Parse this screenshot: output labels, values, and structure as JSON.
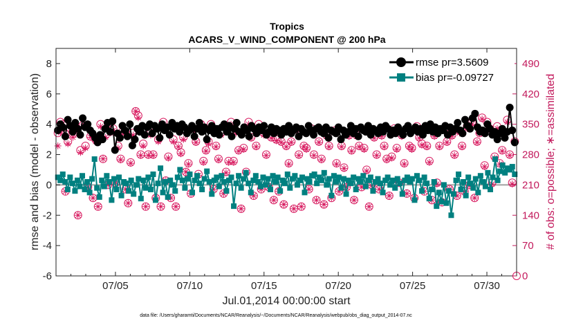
{
  "chart_data": {
    "type": "line",
    "title": "Tropics",
    "subtitle": "ACARS_V_WIND_COMPONENT @ 200 hPa",
    "xlabel": "Jul.01,2014 00:00:00 start",
    "ylabel": "rmse and bias (model - observation)",
    "y2label": "# of obs: o=possible; ∗=assimilated",
    "footnote": "data file: /Users/gharamti/Documents/NCAR/Reanalysis/~/Documents/NCAR/Reanalysis/webpub/obs_diag_output_2014-07.nc",
    "xlim": [
      1,
      32
    ],
    "ylim": [
      -6,
      9
    ],
    "y2lim": [
      0,
      525
    ],
    "x_ticks": [
      5,
      10,
      15,
      20,
      25,
      30
    ],
    "x_tick_labels": [
      "07/05",
      "07/10",
      "07/15",
      "07/20",
      "07/25",
      "07/30"
    ],
    "y_ticks": [
      -6,
      -4,
      -2,
      0,
      2,
      4,
      6,
      8
    ],
    "y_tick_labels": [
      "-6",
      "-4",
      "-2",
      "0",
      "2",
      "4",
      "6",
      "8"
    ],
    "y2_ticks": [
      0,
      70,
      140,
      210,
      280,
      350,
      420,
      490
    ],
    "y2_tick_labels": [
      "0",
      "70",
      "140",
      "210",
      "280",
      "350",
      "420",
      "490"
    ],
    "legend_position": "top-right",
    "colors": {
      "rmse": "#000000",
      "bias": "#008080",
      "obs": "#d81b60",
      "zero_line": "#a0a0a0"
    },
    "series": [
      {
        "name": "rmse pr=3.5609",
        "axis": "left",
        "values": [
          3.6,
          4.0,
          3.8,
          3.2,
          4.3,
          3.9,
          3.5,
          4.1,
          3.7,
          3.3,
          4.4,
          3.8,
          4.0,
          3.6,
          3.4,
          3.1,
          2.8,
          3.3,
          3.0,
          3.7,
          4.1,
          3.5,
          4.2,
          2.3,
          3.4,
          3.1,
          3.9,
          3.6,
          3.2,
          4.0,
          2.6,
          3.0,
          3.7,
          3.5,
          3.9,
          3.3,
          3.8,
          4.0,
          3.4,
          3.9,
          3.7,
          3.1,
          4.0,
          3.6,
          3.8,
          3.3,
          4.1,
          3.7,
          3.9,
          3.5,
          4.0,
          3.8,
          3.4,
          3.6,
          3.9,
          3.2,
          3.7,
          4.1,
          3.5,
          3.8,
          3.0,
          3.6,
          3.9,
          3.4,
          3.7,
          3.3,
          3.8,
          4.0,
          3.5,
          3.9,
          3.2,
          3.7,
          4.1,
          3.5,
          3.3,
          3.8,
          3.6,
          3.2,
          3.9,
          3.7,
          3.4,
          3.8,
          3.6,
          3.9,
          3.3,
          3.5,
          3.8,
          3.4,
          3.7,
          3.6,
          3.3,
          3.7,
          3.5,
          3.9,
          3.4,
          3.6,
          3.8,
          3.2,
          3.7,
          3.5,
          3.4,
          3.9,
          3.6,
          3.3,
          3.7,
          3.8,
          3.5,
          3.4,
          3.8,
          3.1,
          3.6,
          3.5,
          3.4,
          3.8,
          3.0,
          3.6,
          3.3,
          3.5,
          3.9,
          3.4,
          3.7,
          3.2,
          3.8,
          3.6,
          3.5,
          3.9,
          3.3,
          3.7,
          3.6,
          3.4,
          3.8,
          3.5,
          3.9,
          3.7,
          3.3,
          3.6,
          3.4,
          3.8,
          3.5,
          3.3,
          3.7,
          3.9,
          3.4,
          3.6,
          3.8,
          3.5,
          3.7,
          3.3,
          3.9,
          3.6,
          4.0,
          3.5,
          3.8,
          3.4,
          3.7,
          3.6,
          3.9,
          3.3,
          3.8,
          3.5,
          3.7,
          4.1,
          3.6,
          3.4,
          4.3,
          3.9,
          3.7,
          4.4,
          4.7,
          3.8,
          3.5,
          3.6,
          3.4,
          4.0,
          3.7,
          3.3,
          3.5,
          3.0,
          3.4,
          3.7,
          3.1,
          3.5,
          5.1,
          3.6,
          2.8
        ]
      },
      {
        "name": "bias pr=-0.09727",
        "axis": "left",
        "values": [
          0.5,
          0.3,
          0.7,
          0.2,
          -0.3,
          0.5,
          0.1,
          -0.4,
          0.3,
          -0.1,
          0.6,
          -0.3,
          0.2,
          -0.5,
          0.4,
          1.7,
          -0.2,
          -0.8,
          0.3,
          -0.1,
          0.6,
          0.2,
          -1.0,
          0.4,
          -0.3,
          0.5,
          -0.7,
          0.2,
          0.1,
          -0.4,
          0.3,
          -0.6,
          0.0,
          0.4,
          -0.9,
          0.3,
          -0.2,
          0.5,
          -0.3,
          0.7,
          -1.0,
          0.1,
          1.1,
          -0.5,
          0.2,
          -0.8,
          0.3,
          0.0,
          -0.4,
          0.5,
          1.0,
          0.3,
          -0.2,
          0.4,
          0.7,
          -0.5,
          0.3,
          0.6,
          0.1,
          -0.3,
          0.4,
          0.9,
          0.2,
          -0.6,
          0.3,
          0.5,
          -0.1,
          0.6,
          0.2,
          -0.4,
          0.3,
          0.5,
          -1.4,
          0.1,
          0.6,
          -0.2,
          0.4,
          0.8,
          0.1,
          -0.5,
          0.3,
          0.6,
          0.2,
          -0.1,
          0.5,
          0.0,
          0.4,
          -0.3,
          0.6,
          0.2,
          0.5,
          -0.4,
          0.3,
          0.1,
          0.7,
          -0.2,
          0.4,
          0.6,
          0.0,
          0.3,
          0.5,
          -0.5,
          0.4,
          0.2,
          0.6,
          0.7,
          0.1,
          0.5,
          0.3,
          0.8,
          0.0,
          0.4,
          -0.7,
          0.6,
          0.2,
          0.5,
          -0.2,
          0.4,
          -0.6,
          0.3,
          0.1,
          0.5,
          -0.3,
          0.4,
          0.2,
          0.6,
          -0.1,
          0.3,
          0.5,
          -0.4,
          0.2,
          0.4,
          0.1,
          -0.5,
          0.3,
          0.5,
          0.0,
          0.3,
          -0.2,
          0.4,
          0.1,
          -0.6,
          0.3,
          0.5,
          0.2,
          0.4,
          -1.0,
          0.6,
          0.3,
          -0.4,
          0.5,
          0.1,
          -0.9,
          -0.3,
          0.2,
          -1.4,
          -0.5,
          -1.1,
          0.0,
          -1.2,
          -0.4,
          -2.0,
          -0.6,
          0.3,
          0.7,
          -0.3,
          0.2,
          -0.7,
          0.5,
          0.1,
          -0.2,
          0.4,
          -0.5,
          0.6,
          0.2,
          -0.1,
          0.8,
          -0.3,
          0.5,
          1.7,
          0.3,
          0.9,
          1.3,
          0.8,
          1.1,
          1.0,
          1.2,
          0.7
        ]
      },
      {
        "name": "obs possible",
        "axis": "right",
        "marker": "circle",
        "values": [
          330,
          355,
          350,
          195,
          310,
          340,
          328,
          345,
          140,
          290,
          348,
          300,
          205,
          322,
          180,
          315,
          160,
          350,
          270,
          325,
          210,
          335,
          340,
          215,
          300,
          270,
          335,
          200,
          168,
          262,
          330,
          380,
          370,
          280,
          305,
          160,
          280,
          330,
          280,
          180,
          315,
          160,
          355,
          220,
          275,
          180,
          315,
          160,
          300,
          285,
          320,
          240,
          260,
          190,
          340,
          310,
          235,
          350,
          265,
          290,
          310,
          350,
          200,
          300,
          270,
          330,
          190,
          240,
          265,
          355,
          265,
          335,
          290,
          155,
          295,
          240,
          355,
          320,
          185,
          300,
          350,
          200,
          330,
          280,
          205,
          320,
          175,
          315,
          195,
          310,
          165,
          300,
          260,
          310,
          155,
          340,
          280,
          160,
          300,
          295,
          200,
          340,
          280,
          175,
          310,
          270,
          165,
          325,
          300,
          180,
          335,
          260,
          195,
          300,
          250,
          205,
          325,
          290,
          175,
          325,
          300,
          205,
          295,
          245,
          160,
          210,
          320,
          280,
          200,
          325,
          300,
          270,
          185,
          275,
          340,
          295,
          215,
          325,
          260,
          190,
          300,
          295,
          180,
          345,
          320,
          305,
          195,
          300,
          265,
          175,
          325,
          215,
          300,
          170,
          340,
          310,
          200,
          325,
          280,
          185,
          335,
          300,
          195,
          345,
          210,
          355,
          180,
          310,
          330,
          365,
          255,
          355,
          340,
          215,
          275,
          345,
          260,
          290,
          330,
          360,
          280,
          215,
          310
        ]
      },
      {
        "name": "obs assimilated",
        "axis": "right",
        "marker": "star",
        "values": [
          300,
          330,
          340,
          195,
          305,
          335,
          320,
          340,
          140,
          285,
          345,
          295,
          205,
          320,
          180,
          310,
          160,
          345,
          270,
          320,
          210,
          330,
          335,
          215,
          295,
          268,
          330,
          200,
          168,
          260,
          325,
          380,
          365,
          278,
          300,
          160,
          278,
          325,
          278,
          180,
          310,
          160,
          350,
          220,
          272,
          180,
          310,
          160,
          298,
          282,
          315,
          240,
          258,
          190,
          335,
          308,
          232,
          345,
          262,
          288,
          305,
          345,
          200,
          298,
          268,
          325,
          190,
          238,
          262,
          350,
          262,
          330,
          288,
          155,
          292,
          238,
          350,
          318,
          185,
          298,
          345,
          200,
          325,
          278,
          205,
          318,
          175,
          312,
          195,
          308,
          165,
          298,
          258,
          308,
          155,
          335,
          278,
          160,
          298,
          292,
          200,
          335,
          278,
          175,
          308,
          268,
          165,
          322,
          298,
          180,
          330,
          258,
          195,
          298,
          248,
          205,
          322,
          288,
          175,
          322,
          298,
          205,
          292,
          242,
          160,
          208,
          318,
          278,
          200,
          322,
          298,
          268,
          185,
          272,
          335,
          292,
          215,
          322,
          258,
          190,
          298,
          292,
          180,
          340,
          318,
          302,
          195,
          298,
          262,
          175,
          322,
          212,
          298,
          170,
          335,
          308,
          200,
          322,
          278,
          185,
          330,
          298,
          195,
          340,
          208,
          350,
          180,
          308,
          328,
          362,
          252,
          350,
          335,
          212,
          272,
          340,
          258,
          288,
          328,
          355,
          278,
          212,
          308
        ]
      }
    ]
  }
}
